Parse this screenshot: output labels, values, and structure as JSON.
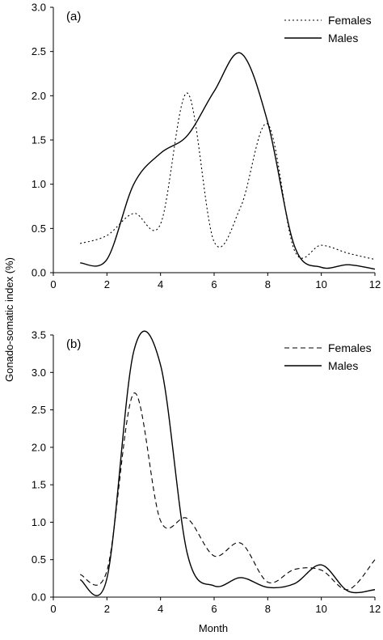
{
  "figure": {
    "ylabel": "Gonado-somatic index (%)",
    "xlabel": "Month"
  },
  "chart_data": [
    {
      "type": "line",
      "panel_label": "(a)",
      "xlim": [
        0,
        12
      ],
      "ylim": [
        0,
        3.0
      ],
      "xticks": [
        0,
        2,
        4,
        6,
        8,
        10,
        12
      ],
      "yticks": [
        0.0,
        0.5,
        1.0,
        1.5,
        2.0,
        2.5,
        3.0
      ],
      "ytick_labels": [
        "0.0",
        "0.5",
        "1.0",
        "1.5",
        "2.0",
        "2.5",
        "3.0"
      ],
      "legend_position": "top-right",
      "grid": false,
      "series": [
        {
          "name": "Females",
          "style": "dotted",
          "color": "#000000",
          "x": [
            1,
            2,
            3,
            4,
            5,
            6,
            7,
            8,
            9,
            10,
            11,
            12
          ],
          "y": [
            0.33,
            0.42,
            0.67,
            0.55,
            2.03,
            0.35,
            0.75,
            1.68,
            0.25,
            0.31,
            0.22,
            0.15
          ]
        },
        {
          "name": "Males",
          "style": "solid",
          "color": "#000000",
          "x": [
            1,
            2,
            3,
            4,
            5,
            6,
            7,
            8,
            9,
            10,
            11,
            12
          ],
          "y": [
            0.11,
            0.15,
            1.0,
            1.35,
            1.55,
            2.05,
            2.48,
            1.7,
            0.3,
            0.06,
            0.09,
            0.04
          ]
        }
      ]
    },
    {
      "type": "line",
      "panel_label": "(b)",
      "xlim": [
        0,
        12
      ],
      "ylim": [
        0,
        3.5
      ],
      "xticks": [
        0,
        2,
        4,
        6,
        8,
        10,
        12
      ],
      "yticks": [
        0.0,
        0.5,
        1.0,
        1.5,
        2.0,
        2.5,
        3.0,
        3.5
      ],
      "ytick_labels": [
        "0.0",
        "0.5",
        "1.0",
        "1.5",
        "2.0",
        "2.5",
        "3.0",
        "3.5"
      ],
      "legend_position": "top-right",
      "grid": false,
      "series": [
        {
          "name": "Females",
          "style": "dashed",
          "color": "#000000",
          "x": [
            1,
            2,
            3,
            4,
            5,
            6,
            7,
            8,
            9,
            10,
            11,
            12
          ],
          "y": [
            0.3,
            0.35,
            2.72,
            1.02,
            1.05,
            0.55,
            0.72,
            0.2,
            0.37,
            0.36,
            0.1,
            0.5
          ]
        },
        {
          "name": "Males",
          "style": "solid",
          "color": "#000000",
          "x": [
            1,
            2,
            3,
            4,
            5,
            6,
            7,
            8,
            9,
            10,
            11,
            12
          ],
          "y": [
            0.23,
            0.25,
            3.28,
            3.1,
            0.58,
            0.15,
            0.26,
            0.13,
            0.18,
            0.43,
            0.08,
            0.1
          ]
        }
      ]
    }
  ]
}
